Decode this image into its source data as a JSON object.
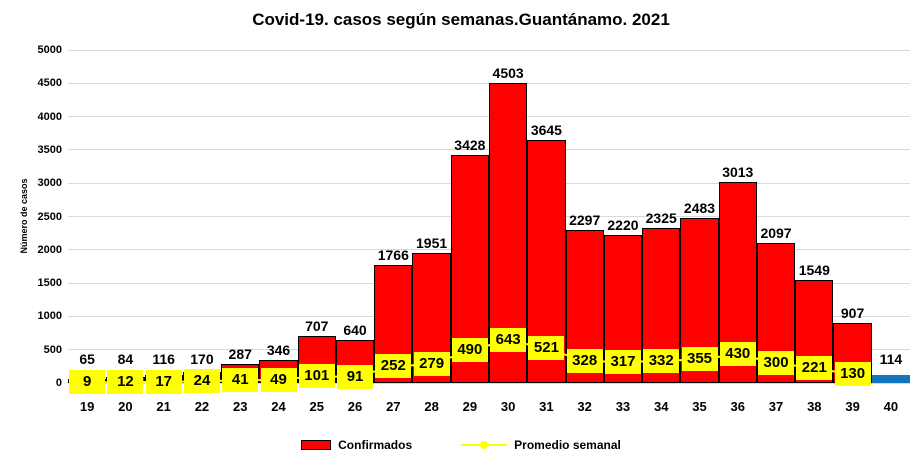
{
  "title": "Covid-19. casos según semanas.Guantánamo. 2021",
  "chart_data": {
    "type": "bar",
    "title": "Covid-19. casos según semanas.Guantánamo. 2021",
    "xlabel": "",
    "ylabel": "Número de casos",
    "ylim": [
      0,
      5000
    ],
    "ytick_step": 500,
    "grid": true,
    "legend_position": "bottom",
    "categories": [
      "19",
      "20",
      "21",
      "22",
      "23",
      "24",
      "25",
      "26",
      "27",
      "28",
      "29",
      "30",
      "31",
      "32",
      "33",
      "34",
      "35",
      "36",
      "37",
      "38",
      "39",
      "40"
    ],
    "series": [
      {
        "name": "Confirmados",
        "type": "bar",
        "color": "#FF0000",
        "last_bar_color": "#1176BD",
        "values": [
          65,
          84,
          116,
          170,
          287,
          346,
          707,
          640,
          1766,
          1951,
          3428,
          4503,
          3645,
          2297,
          2220,
          2325,
          2483,
          3013,
          2097,
          1549,
          907,
          114
        ]
      },
      {
        "name": "Promedio semanal",
        "type": "line",
        "color": "#FFFF00",
        "label_bg": "#FFFF00",
        "values": [
          9,
          12,
          17,
          24,
          41,
          49,
          101,
          91,
          252,
          279,
          490,
          643,
          521,
          328,
          317,
          332,
          355,
          430,
          300,
          221,
          130
        ]
      }
    ],
    "colors": {
      "grid": "#D9D9D9",
      "bar_border": "#000000",
      "text": "#000000",
      "background": "#FFFFFF"
    }
  }
}
